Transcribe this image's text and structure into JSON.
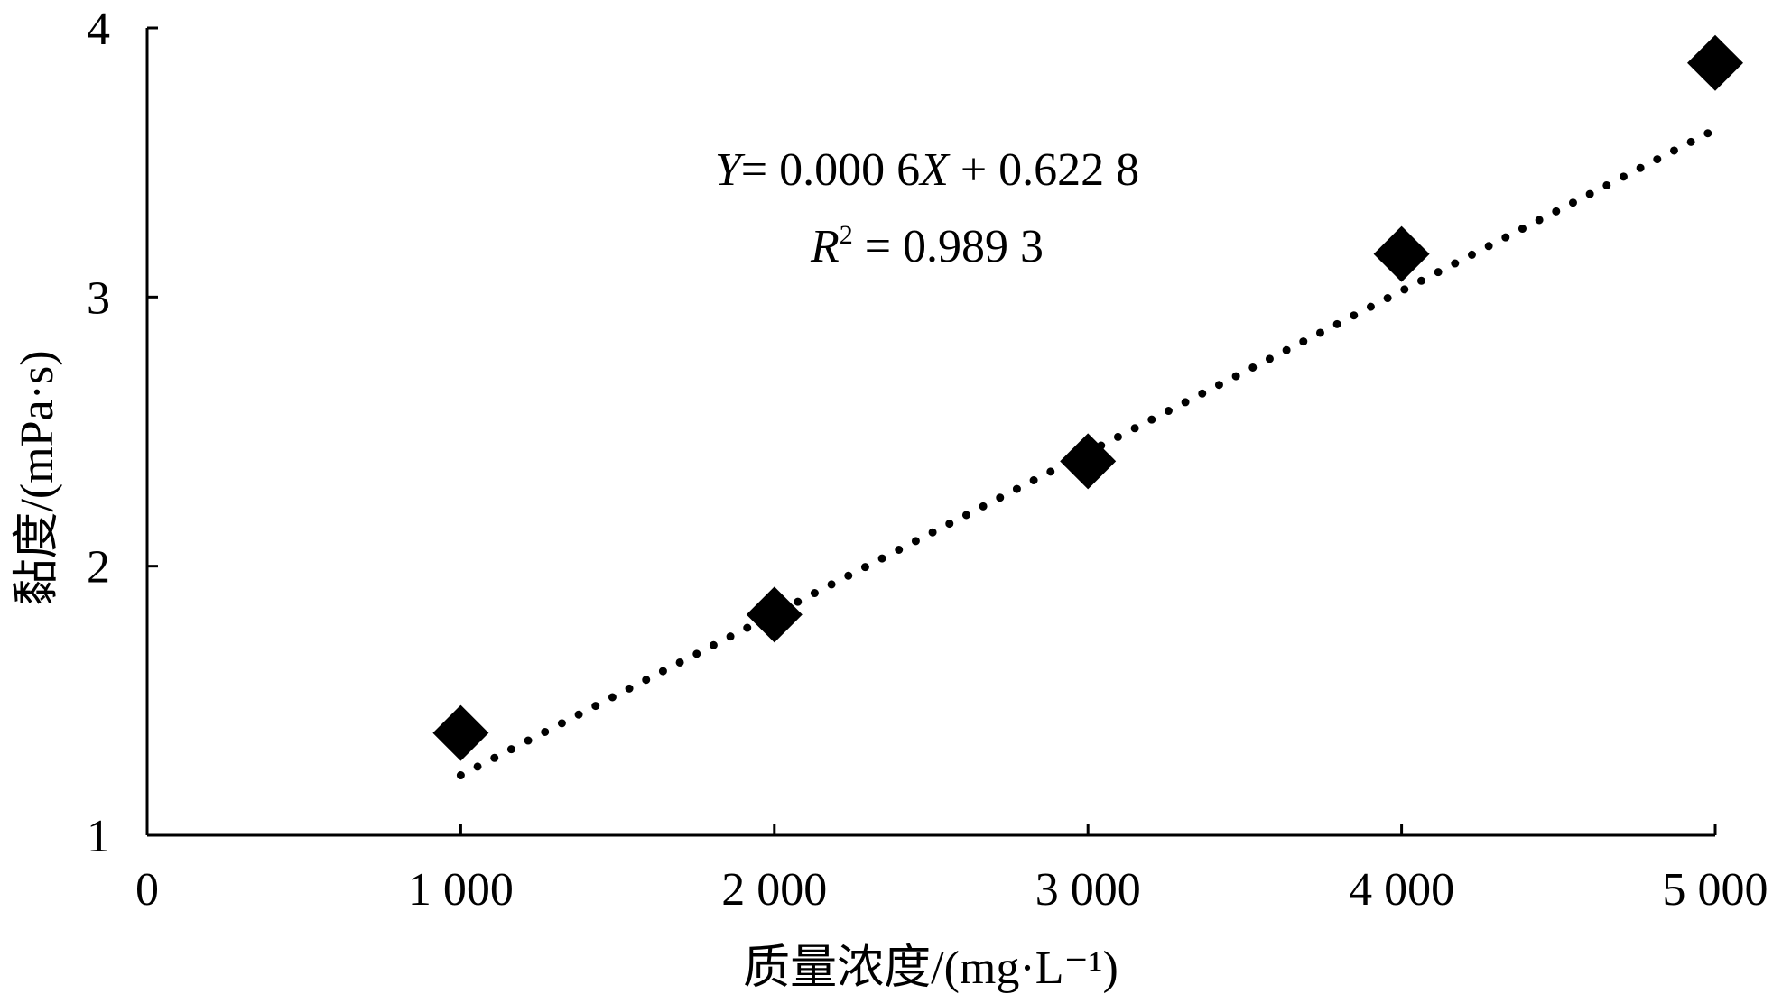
{
  "chart_data": {
    "type": "scatter",
    "x_ticks": [
      0,
      1000,
      2000,
      3000,
      4000,
      5000
    ],
    "x_tick_labels": [
      "0",
      "1 000",
      "2 000",
      "3 000",
      "4 000",
      "5 000"
    ],
    "y_ticks": [
      1,
      2,
      3,
      4
    ],
    "y_tick_labels": [
      "1",
      "2",
      "3",
      "4"
    ],
    "xlim": [
      0,
      5000
    ],
    "ylim": [
      1,
      4
    ],
    "xlabel": "质量浓度/(mg·L⁻¹)",
    "ylabel": "黏度/(mPa·s)",
    "series": [
      {
        "marker": "diamond",
        "color": "#000000",
        "points": [
          {
            "x": 1000,
            "y": 1.38
          },
          {
            "x": 2000,
            "y": 1.82
          },
          {
            "x": 3000,
            "y": 2.39
          },
          {
            "x": 4000,
            "y": 3.16
          },
          {
            "x": 5000,
            "y": 3.87
          }
        ]
      }
    ],
    "trendline": {
      "style": "dotted",
      "x_range": [
        1000,
        5000
      ],
      "slope": 0.0006,
      "intercept": 0.6228
    },
    "annotations": {
      "equation": "= 0.000 6",
      "equation_tail": " + 0.622 8",
      "r2_value": " = 0.989 3"
    },
    "grid": false,
    "legend": "none"
  }
}
